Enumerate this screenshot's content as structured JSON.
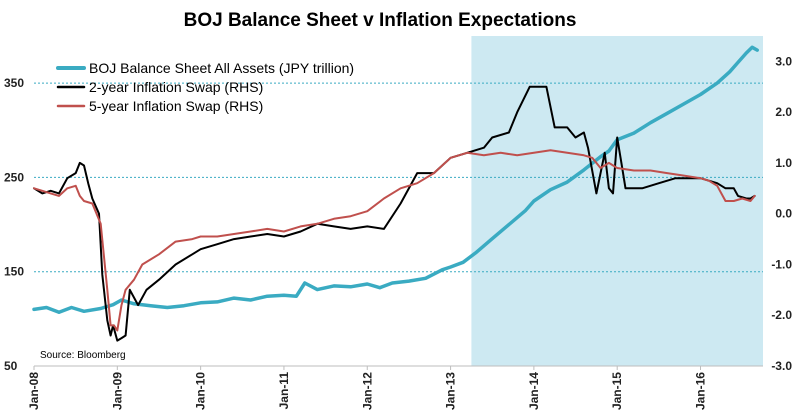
{
  "chart_data": {
    "type": "line",
    "title": "BOJ Balance Sheet v Inflation Expectations",
    "source": "Source: Bloomberg",
    "left_axis": {
      "ylim": [
        50,
        400
      ],
      "ticks": [
        "50",
        "150",
        "250",
        "350"
      ],
      "tick_values": [
        50,
        150,
        250,
        350
      ]
    },
    "right_axis": {
      "ylim": [
        -3.0,
        3.5
      ],
      "ticks": [
        "-3.0",
        "-2.0",
        "-1.0",
        "0.0",
        "1.0",
        "2.0",
        "3.0"
      ],
      "tick_values": [
        -3,
        -2,
        -1,
        0,
        1,
        2,
        3
      ]
    },
    "x_axis": {
      "range": [
        2008.0,
        2016.75
      ],
      "tick_labels": [
        "Jan-08",
        "Jan-09",
        "Jan-10",
        "Jan-11",
        "Jan-12",
        "Jan-13",
        "Jan-14",
        "Jan-15",
        "Jan-16"
      ],
      "tick_values": [
        2008,
        2009,
        2010,
        2011,
        2012,
        2013,
        2014,
        2015,
        2016
      ]
    },
    "gridlines": {
      "axis": "left",
      "values": [
        150,
        250,
        350
      ],
      "style": "dotted"
    },
    "shaded_region": {
      "x_start": 2013.25,
      "x_end": 2016.75,
      "color": "#cde9f2"
    },
    "series": [
      {
        "name": "BOJ Balance Sheet All Assets (JPY trillion)",
        "axis": "left",
        "color": "#3aabc2",
        "width": 3.5,
        "points": [
          [
            2008.0,
            110
          ],
          [
            2008.15,
            112
          ],
          [
            2008.3,
            107
          ],
          [
            2008.45,
            112
          ],
          [
            2008.6,
            108
          ],
          [
            2008.8,
            111
          ],
          [
            2008.95,
            115
          ],
          [
            2009.05,
            120
          ],
          [
            2009.2,
            116
          ],
          [
            2009.4,
            114
          ],
          [
            2009.6,
            112
          ],
          [
            2009.8,
            114
          ],
          [
            2010.0,
            117
          ],
          [
            2010.2,
            118
          ],
          [
            2010.4,
            122
          ],
          [
            2010.6,
            120
          ],
          [
            2010.8,
            124
          ],
          [
            2011.0,
            125
          ],
          [
            2011.15,
            124
          ],
          [
            2011.25,
            138
          ],
          [
            2011.4,
            131
          ],
          [
            2011.6,
            135
          ],
          [
            2011.8,
            134
          ],
          [
            2012.0,
            137
          ],
          [
            2012.15,
            133
          ],
          [
            2012.3,
            138
          ],
          [
            2012.5,
            140
          ],
          [
            2012.7,
            143
          ],
          [
            2012.9,
            152
          ],
          [
            2013.0,
            155
          ],
          [
            2013.15,
            160
          ],
          [
            2013.3,
            170
          ],
          [
            2013.5,
            185
          ],
          [
            2013.7,
            200
          ],
          [
            2013.9,
            215
          ],
          [
            2014.0,
            225
          ],
          [
            2014.2,
            237
          ],
          [
            2014.4,
            245
          ],
          [
            2014.6,
            258
          ],
          [
            2014.8,
            272
          ],
          [
            2014.9,
            278
          ],
          [
            2015.0,
            290
          ],
          [
            2015.2,
            297
          ],
          [
            2015.4,
            308
          ],
          [
            2015.6,
            318
          ],
          [
            2015.8,
            328
          ],
          [
            2016.0,
            338
          ],
          [
            2016.2,
            350
          ],
          [
            2016.35,
            362
          ],
          [
            2016.45,
            372
          ],
          [
            2016.55,
            382
          ],
          [
            2016.62,
            388
          ],
          [
            2016.68,
            385
          ]
        ]
      },
      {
        "name": "2-year Inflation Swap (RHS)",
        "axis": "right",
        "color": "#000000",
        "width": 2,
        "points": [
          [
            2008.0,
            0.5
          ],
          [
            2008.1,
            0.4
          ],
          [
            2008.2,
            0.45
          ],
          [
            2008.3,
            0.4
          ],
          [
            2008.4,
            0.7
          ],
          [
            2008.5,
            0.8
          ],
          [
            2008.55,
            1.0
          ],
          [
            2008.6,
            0.95
          ],
          [
            2008.65,
            0.6
          ],
          [
            2008.7,
            0.3
          ],
          [
            2008.78,
            0.0
          ],
          [
            2008.82,
            -1.2
          ],
          [
            2008.88,
            -2.1
          ],
          [
            2008.92,
            -2.4
          ],
          [
            2008.95,
            -2.2
          ],
          [
            2009.0,
            -2.5
          ],
          [
            2009.05,
            -2.45
          ],
          [
            2009.1,
            -2.4
          ],
          [
            2009.15,
            -1.5
          ],
          [
            2009.25,
            -1.8
          ],
          [
            2009.35,
            -1.5
          ],
          [
            2009.5,
            -1.3
          ],
          [
            2009.7,
            -1.0
          ],
          [
            2009.9,
            -0.8
          ],
          [
            2010.0,
            -0.7
          ],
          [
            2010.2,
            -0.6
          ],
          [
            2010.4,
            -0.5
          ],
          [
            2010.6,
            -0.45
          ],
          [
            2010.8,
            -0.4
          ],
          [
            2011.0,
            -0.45
          ],
          [
            2011.2,
            -0.35
          ],
          [
            2011.4,
            -0.2
          ],
          [
            2011.6,
            -0.25
          ],
          [
            2011.8,
            -0.3
          ],
          [
            2012.0,
            -0.25
          ],
          [
            2012.2,
            -0.3
          ],
          [
            2012.4,
            0.2
          ],
          [
            2012.6,
            0.8
          ],
          [
            2012.8,
            0.8
          ],
          [
            2013.0,
            1.1
          ],
          [
            2013.2,
            1.2
          ],
          [
            2013.4,
            1.3
          ],
          [
            2013.5,
            1.5
          ],
          [
            2013.7,
            1.6
          ],
          [
            2013.8,
            2.0
          ],
          [
            2013.95,
            2.5
          ],
          [
            2014.05,
            2.5
          ],
          [
            2014.15,
            2.5
          ],
          [
            2014.25,
            1.7
          ],
          [
            2014.4,
            1.7
          ],
          [
            2014.5,
            1.5
          ],
          [
            2014.6,
            1.6
          ],
          [
            2014.65,
            1.3
          ],
          [
            2014.75,
            0.4
          ],
          [
            2014.85,
            1.2
          ],
          [
            2014.9,
            0.5
          ],
          [
            2014.95,
            0.4
          ],
          [
            2015.0,
            1.5
          ],
          [
            2015.05,
            1.0
          ],
          [
            2015.1,
            0.5
          ],
          [
            2015.3,
            0.5
          ],
          [
            2015.5,
            0.6
          ],
          [
            2015.7,
            0.7
          ],
          [
            2015.9,
            0.7
          ],
          [
            2016.0,
            0.7
          ],
          [
            2016.2,
            0.6
          ],
          [
            2016.3,
            0.5
          ],
          [
            2016.4,
            0.5
          ],
          [
            2016.45,
            0.35
          ],
          [
            2016.55,
            0.3
          ],
          [
            2016.6,
            0.3
          ],
          [
            2016.65,
            0.35
          ]
        ]
      },
      {
        "name": "5-year Inflation Swap (RHS)",
        "axis": "right",
        "color": "#c0504d",
        "width": 2,
        "points": [
          [
            2008.0,
            0.5
          ],
          [
            2008.1,
            0.45
          ],
          [
            2008.2,
            0.4
          ],
          [
            2008.3,
            0.35
          ],
          [
            2008.4,
            0.5
          ],
          [
            2008.5,
            0.55
          ],
          [
            2008.55,
            0.35
          ],
          [
            2008.6,
            0.25
          ],
          [
            2008.7,
            0.2
          ],
          [
            2008.8,
            -0.2
          ],
          [
            2008.88,
            -1.5
          ],
          [
            2008.92,
            -2.2
          ],
          [
            2008.96,
            -2.2
          ],
          [
            2009.0,
            -2.3
          ],
          [
            2009.05,
            -1.8
          ],
          [
            2009.1,
            -1.5
          ],
          [
            2009.2,
            -1.3
          ],
          [
            2009.3,
            -1.0
          ],
          [
            2009.5,
            -0.8
          ],
          [
            2009.7,
            -0.55
          ],
          [
            2009.9,
            -0.5
          ],
          [
            2010.0,
            -0.45
          ],
          [
            2010.2,
            -0.45
          ],
          [
            2010.4,
            -0.4
          ],
          [
            2010.6,
            -0.35
          ],
          [
            2010.8,
            -0.3
          ],
          [
            2011.0,
            -0.35
          ],
          [
            2011.2,
            -0.25
          ],
          [
            2011.4,
            -0.2
          ],
          [
            2011.6,
            -0.1
          ],
          [
            2011.8,
            -0.05
          ],
          [
            2012.0,
            0.05
          ],
          [
            2012.2,
            0.3
          ],
          [
            2012.4,
            0.5
          ],
          [
            2012.6,
            0.6
          ],
          [
            2012.8,
            0.8
          ],
          [
            2013.0,
            1.1
          ],
          [
            2013.2,
            1.2
          ],
          [
            2013.4,
            1.15
          ],
          [
            2013.6,
            1.2
          ],
          [
            2013.8,
            1.15
          ],
          [
            2014.0,
            1.2
          ],
          [
            2014.2,
            1.25
          ],
          [
            2014.4,
            1.2
          ],
          [
            2014.6,
            1.15
          ],
          [
            2014.7,
            1.1
          ],
          [
            2014.8,
            0.9
          ],
          [
            2014.9,
            1.0
          ],
          [
            2015.0,
            0.9
          ],
          [
            2015.2,
            0.85
          ],
          [
            2015.4,
            0.85
          ],
          [
            2015.6,
            0.8
          ],
          [
            2015.8,
            0.75
          ],
          [
            2016.0,
            0.7
          ],
          [
            2016.1,
            0.65
          ],
          [
            2016.2,
            0.55
          ],
          [
            2016.3,
            0.25
          ],
          [
            2016.4,
            0.25
          ],
          [
            2016.5,
            0.3
          ],
          [
            2016.6,
            0.25
          ],
          [
            2016.65,
            0.35
          ]
        ]
      }
    ],
    "legend": {
      "placement": "top-left"
    }
  }
}
